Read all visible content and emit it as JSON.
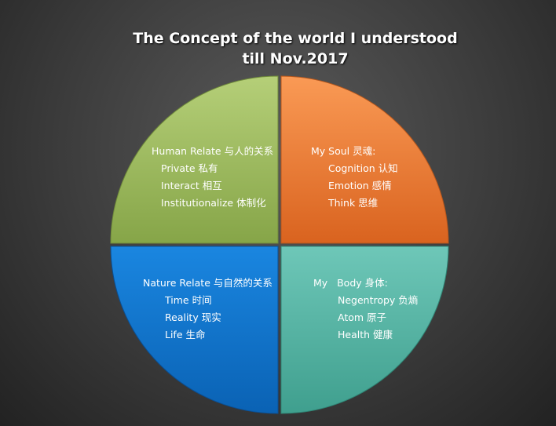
{
  "title_line1": "The Concept of the world  I understood",
  "title_line2": "till Nov.2017",
  "quadrants": [
    {
      "key": "top-left",
      "heading": "Human Relate 与人的关系",
      "items": [
        "Private 私有",
        "Interact 相互",
        "Institutionalize 体制化"
      ],
      "color": "#9bbb59"
    },
    {
      "key": "top-right",
      "heading": "My Soul 灵魂:",
      "items": [
        "Cognition 认知",
        "Emotion 感情",
        "Think 思维"
      ],
      "color": "#f79646"
    },
    {
      "key": "bottom-left",
      "heading": "Nature Relate 与自然的关系",
      "items": [
        "Time 时间",
        "Reality 现实",
        "Life 生命"
      ],
      "color": "#1f7fd6"
    },
    {
      "key": "bottom-right",
      "heading": "My   Body 身体:",
      "items": [
        "Negentropy 负熵",
        "Atom 原子",
        "Health 健康"
      ],
      "color": "#4bacc6"
    }
  ]
}
